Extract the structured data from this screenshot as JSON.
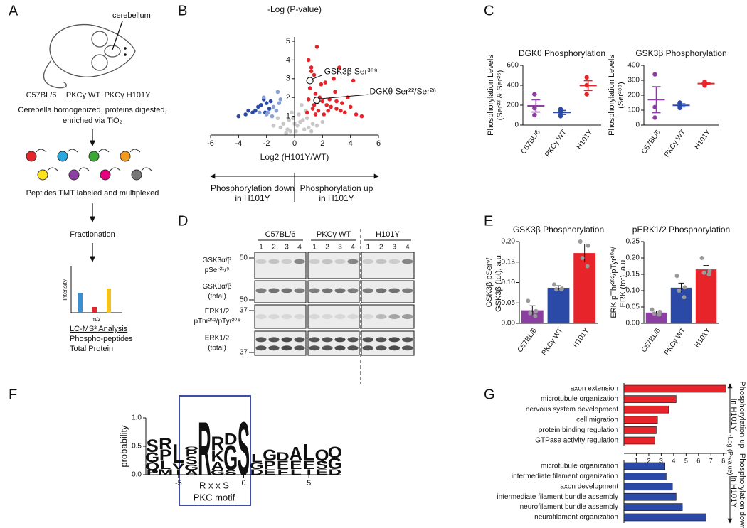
{
  "panel_labels": [
    "A",
    "B",
    "C",
    "D",
    "E",
    "F",
    "G"
  ],
  "workflow": {
    "cerebellum": "cerebellum",
    "strains": [
      {
        "text": "C57BL/6",
        "color": "#8b3fa0"
      },
      {
        "text": "PKCγ WT",
        "color": "#2b4aa8"
      },
      {
        "text": "PKCγ H101Y",
        "color": "#e8242b"
      }
    ],
    "steps": [
      "Cerebella homogenized, proteins digested,",
      "enriched via TiO₂",
      "Peptides TMT labeled and multiplexed",
      "Fractionation"
    ],
    "spectrum": {
      "y_label": "Intensity",
      "x_label": "m/z"
    },
    "analysis": [
      "LC-MS³ Analysis",
      "Phospho-peptides",
      "Total Protein"
    ]
  },
  "blot": {
    "groups": [
      "C57BL/6",
      "PKCγ WT",
      "H101Y"
    ],
    "lanes": [
      "1",
      "2",
      "3",
      "4"
    ],
    "rows": [
      {
        "label": [
          "GSK3α/β",
          "pSer²¹/⁹"
        ],
        "marker": "50"
      },
      {
        "label": [
          "GSK3α/β",
          "(total)"
        ],
        "marker": "50"
      },
      {
        "label": [
          "ERK1/2",
          "pThr²⁰²/pTyr²⁰⁴"
        ],
        "marker": "37"
      },
      {
        "label": [
          "ERK1/2",
          "(total)"
        ],
        "marker": "37"
      }
    ]
  },
  "chart_data": [
    {
      "type": "scatter",
      "title": "-Log (P-value)",
      "x_label": "Log2 (H101Y/WT)",
      "xlim": [
        -6,
        6
      ],
      "ylim": [
        0,
        5
      ],
      "xticks": [
        -6,
        -4,
        -2,
        0,
        2,
        4,
        6
      ],
      "yticks": [
        1,
        2,
        3,
        4,
        5
      ],
      "series": [
        {
          "color": "#c8c8c8",
          "x": [
            -0.5,
            0.2,
            0.6,
            -0.8,
            1.0,
            -1.2,
            0.3,
            0.8,
            -0.3,
            0.4,
            -1.5,
            1.3,
            -0.1,
            0.9,
            0.5,
            -0.6,
            1.6,
            -1.0,
            0.1,
            0.7,
            -0.4,
            1.2,
            -0.2,
            0.0,
            2.0
          ],
          "values": [
            0.3,
            0.5,
            0.8,
            0.6,
            0.4,
            0.9,
            1.1,
            1.3,
            0.2,
            0.7,
            0.5,
            0.6,
            0.9,
            0.9,
            1.6,
            0.1,
            0.5,
            0.4,
            0.2,
            0.3,
            0.8,
            0.2,
            1.2,
            0.6,
            0.7
          ]
        },
        {
          "color": "#e8242b",
          "x": [
            1.0,
            1.2,
            1.4,
            1.1,
            1.5,
            1.8,
            2.0,
            2.3,
            2.6,
            3.0,
            3.3,
            3.6,
            4.0,
            4.4,
            4.8,
            1.3,
            1.7,
            2.1,
            2.5,
            2.9,
            3.4,
            3.8,
            1.6,
            2.2,
            2.8,
            3.2,
            1.2,
            1.9,
            4.2,
            1.4,
            0.9,
            1.0,
            2.4,
            3.0,
            1.5
          ],
          "values": [
            4.0,
            3.6,
            3.2,
            2.5,
            2.2,
            2.0,
            1.8,
            1.6,
            1.5,
            1.4,
            1.3,
            1.2,
            1.5,
            1.1,
            1.0,
            1.4,
            1.3,
            1.1,
            1.9,
            2.3,
            1.7,
            2.0,
            4.7,
            2.8,
            3.0,
            3.6,
            3.4,
            2.7,
            2.9,
            1.6,
            1.2,
            1.9,
            1.3,
            1.8,
            1.1
          ]
        },
        {
          "color": "#2b4aa8",
          "x": [
            -4.0,
            -3.3,
            -3.0,
            -2.6,
            -2.4,
            -2.2,
            -2.0,
            -1.8,
            -2.8,
            -3.5,
            -1.7,
            -2.1
          ],
          "values": [
            1.0,
            1.3,
            1.2,
            1.5,
            1.6,
            1.9,
            1.7,
            1.4,
            1.3,
            1.1,
            1.8,
            1.2
          ]
        },
        {
          "color": "#8a9fd4",
          "x": [
            -1.2,
            -1.0,
            -1.5,
            -1.9,
            -2.5,
            -2.2,
            -1.6,
            -1.3,
            -1.1,
            -2.0
          ],
          "values": [
            2.3,
            1.9,
            1.5,
            1.2,
            1.2,
            2.0,
            1.0,
            1.3,
            1.7,
            1.1
          ]
        }
      ],
      "annotations": [
        {
          "text": "GSK3β Ser³⁸⁹",
          "x": 1.1,
          "y": 2.9
        },
        {
          "text": "DGKθ Ser²²/Ser²⁶",
          "x": 1.6,
          "y": 1.85
        }
      ],
      "direction_labels": [
        {
          "text": [
            "Phosphorylation down",
            "in H101Y"
          ],
          "color": "#2b4aa8"
        },
        {
          "text": [
            "Phosphorylation up",
            "in H101Y"
          ],
          "color": "#e8242b"
        }
      ]
    },
    {
      "type": "dot",
      "title": "DGKθ Phosphorylation",
      "y_label": [
        "Phosphorylation Levels",
        "(Ser²² & Ser²⁶)"
      ],
      "categories": [
        "C57BL/6",
        "PKCγ WT",
        "H101Y"
      ],
      "colors": [
        "#8b3fa0",
        "#2b4aa8",
        "#e8242b"
      ],
      "points": [
        [
          310,
          170,
          100
        ],
        [
          160,
          130,
          90
        ],
        [
          480,
          400,
          310
        ]
      ],
      "values": [
        193,
        127,
        397
      ],
      "errors": [
        61,
        20,
        49
      ],
      "ylim": [
        0,
        600
      ],
      "yticks": [
        0,
        200,
        400,
        600
      ]
    },
    {
      "type": "dot",
      "title": "GSK3β Phosphorylation",
      "y_label": [
        "Phosphorylation Levels",
        "(Ser³⁸⁹)"
      ],
      "categories": [
        "C57BL/6",
        "PKCγ WT",
        "H101Y"
      ],
      "colors": [
        "#8b3fa0",
        "#2b4aa8",
        "#e8242b"
      ],
      "points": [
        [
          340,
          120,
          50
        ],
        [
          150,
          130,
          115
        ],
        [
          290,
          280,
          265
        ]
      ],
      "values": [
        170,
        132,
        278
      ],
      "errors": [
        87,
        10,
        7
      ],
      "ylim": [
        0,
        400
      ],
      "yticks": [
        0,
        100,
        200,
        300,
        400
      ]
    },
    {
      "type": "bar",
      "title": "GSK3β Phosphorylation",
      "y_label": [
        "GSK3β pSer⁹/",
        "GSK3β (tot), a.u."
      ],
      "categories": [
        "C57BL/6",
        "PKCγ WT",
        "H101Y"
      ],
      "colors": [
        "#8b3fa0",
        "#2b4aa8",
        "#e8242b"
      ],
      "values": [
        0.032,
        0.087,
        0.172
      ],
      "errors": [
        0.011,
        0.005,
        0.022
      ],
      "points": [
        [
          0.055,
          0.03,
          0.025,
          0.018
        ],
        [
          0.095,
          0.085,
          0.083,
          0.083
        ],
        [
          0.2,
          0.19,
          0.16,
          0.14
        ]
      ],
      "ylim": [
        0,
        0.2
      ],
      "yticks": [
        {
          "value": 0,
          "label": "0.00"
        },
        0.05,
        {
          "value": 0.1,
          "label": "0.10"
        },
        0.15,
        {
          "value": 0.2,
          "label": "0.20"
        }
      ]
    },
    {
      "type": "bar",
      "title": "pERK1/2 Phosphorylation",
      "y_label": [
        "ERK pThr²⁰²/pTyr²⁰⁴/",
        "ERK (tot), a.u."
      ],
      "categories": [
        "C57BL/6",
        "PKCγ WT",
        "H101Y"
      ],
      "colors": [
        "#8b3fa0",
        "#2b4aa8",
        "#e8242b"
      ],
      "values": [
        0.033,
        0.109,
        0.165
      ],
      "errors": [
        0.005,
        0.014,
        0.012
      ],
      "points": [
        [
          0.042,
          0.035,
          0.03,
          0.027
        ],
        [
          0.145,
          0.11,
          0.1,
          0.08
        ],
        [
          0.2,
          0.16,
          0.155,
          0.15
        ]
      ],
      "ylim": [
        0,
        0.25
      ],
      "yticks": [
        {
          "value": 0,
          "label": "0.00"
        },
        0.05,
        {
          "value": 0.1,
          "label": "0.10"
        },
        0.15,
        {
          "value": 0.2,
          "label": "0.20"
        },
        0.25
      ]
    },
    {
      "type": "logo",
      "y_label": "probability",
      "xlim": [
        -7.5,
        7.5
      ],
      "ylim": [
        0,
        1
      ],
      "xticks": [
        -5,
        0,
        5
      ],
      "yticks": [
        {
          "value": 0,
          "label": "0.0"
        },
        0.5,
        {
          "value": 1,
          "label": "1.0"
        }
      ],
      "positions": [
        -7,
        -6,
        -5,
        -4,
        -3,
        -2,
        -1,
        0,
        1,
        2,
        3,
        4,
        5,
        6,
        7
      ],
      "letters": [
        [
          {
            "letter": "P",
            "value": 0.08
          },
          {
            "letter": "Q",
            "value": 0.14
          },
          {
            "letter": "G",
            "value": 0.18
          },
          {
            "letter": "S",
            "value": 0.22
          }
        ],
        [
          {
            "letter": "M",
            "value": 0.1
          },
          {
            "letter": "L",
            "value": 0.15
          },
          {
            "letter": "P",
            "value": 0.2
          },
          {
            "letter": "R",
            "value": 0.2
          }
        ],
        [
          {
            "letter": "I",
            "value": 0.1
          },
          {
            "letter": "V",
            "value": 0.1
          },
          {
            "letter": "L",
            "value": 0.35
          }
        ],
        [
          {
            "letter": "A",
            "value": 0.08
          },
          {
            "letter": "G",
            "value": 0.1
          },
          {
            "letter": "S",
            "value": 0.14
          },
          {
            "letter": "P",
            "value": 0.12
          },
          {
            "letter": "Q",
            "value": 0.06
          }
        ],
        [
          {
            "letter": "R",
            "value": 0.95
          }
        ],
        [
          {
            "letter": "G",
            "value": 0.08
          },
          {
            "letter": "A",
            "value": 0.15
          },
          {
            "letter": "K",
            "value": 0.2
          },
          {
            "letter": "R",
            "value": 0.25
          }
        ],
        [
          {
            "letter": "S",
            "value": 0.08
          },
          {
            "letter": "G",
            "value": 0.45
          },
          {
            "letter": "D",
            "value": 0.2
          }
        ],
        [
          {
            "letter": "S",
            "value": 0.95
          }
        ],
        [
          {
            "letter": "D",
            "value": 0.1
          },
          {
            "letter": "G",
            "value": 0.12
          },
          {
            "letter": "L",
            "value": 0.15
          }
        ],
        [
          {
            "letter": "E",
            "value": 0.1
          },
          {
            "letter": "P",
            "value": 0.15
          },
          {
            "letter": "G",
            "value": 0.2
          }
        ],
        [
          {
            "letter": "F",
            "value": 0.1
          },
          {
            "letter": "E",
            "value": 0.15
          },
          {
            "letter": "D",
            "value": 0.15
          }
        ],
        [
          {
            "letter": "L",
            "value": 0.1
          },
          {
            "letter": "E",
            "value": 0.15
          },
          {
            "letter": "A",
            "value": 0.25
          }
        ],
        [
          {
            "letter": "I",
            "value": 0.1
          },
          {
            "letter": "E",
            "value": 0.15
          },
          {
            "letter": "L",
            "value": 0.3
          }
        ],
        [
          {
            "letter": "E",
            "value": 0.1
          },
          {
            "letter": "S",
            "value": 0.15
          },
          {
            "letter": "Q",
            "value": 0.2
          }
        ],
        [
          {
            "letter": "D",
            "value": 0.1
          },
          {
            "letter": "G",
            "value": 0.2
          },
          {
            "letter": "Q",
            "value": 0.2
          }
        ]
      ],
      "letter_colors": {
        "A": "#111111",
        "D": "#e32020",
        "E": "#e32020",
        "F": "#111111",
        "G": "#1b8a3c",
        "I": "#111111",
        "K": "#2b3a9a",
        "L": "#111111",
        "M": "#111111",
        "P": "#111111",
        "Q": "#8a2a8a",
        "R": "#2b3a9a",
        "S": "#1b8a3c",
        "V": "#111111"
      },
      "motif": [
        "R x x S",
        "PKC motif"
      ]
    },
    {
      "type": "hbar",
      "x_label": "-Log (P-value)",
      "xlim": [
        0,
        8.3
      ],
      "xticks": [
        1,
        2,
        3,
        4,
        5,
        6,
        7,
        8
      ],
      "groups": [
        {
          "side_label": [
            "Phosphorylation up",
            "in H101Y"
          ],
          "color": "#e8242b",
          "categories": [
            "axon extension",
            "microtubule organization",
            "nervous system development",
            "cell migration",
            "protein binding regulation",
            "GTPase activity regulation"
          ],
          "values": [
            8.2,
            4.2,
            3.6,
            2.7,
            2.6,
            2.5
          ]
        },
        {
          "side_label": [
            "Phosphorylation down",
            "in H101Y"
          ],
          "color": "#2b4aa8",
          "categories": [
            "microtubule organization",
            "intermediate filament organization",
            "axon development",
            "intermediate filament bundle assembly",
            "neurofilament bundle assembly",
            "neurofilament organization"
          ],
          "values": [
            3.3,
            3.4,
            3.9,
            4.2,
            4.7,
            6.6
          ]
        }
      ]
    }
  ]
}
